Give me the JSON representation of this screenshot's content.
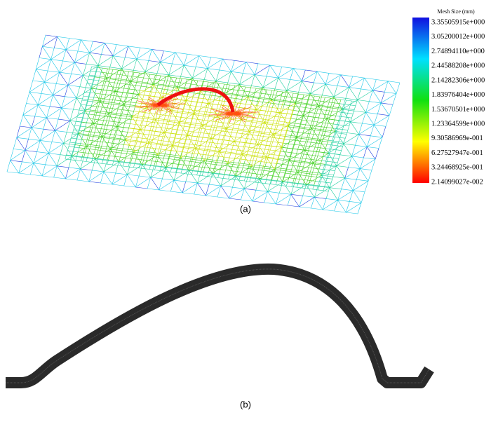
{
  "figure": {
    "colorbar": {
      "title": "Mesh Size (mm)",
      "labels": [
        "3.35505915e+000",
        "3.05200012e+000",
        "2.74894110e+000",
        "2.44588208e+000",
        "2.14282306e+000",
        "1.83976404e+000",
        "1.53670501e+000",
        "1.23364599e+000",
        "9.30586969e-001",
        "6.27527947e-001",
        "3.24468925e-001",
        "2.14099027e-002"
      ]
    },
    "captions": [
      "(a)",
      "(b)"
    ]
  }
}
